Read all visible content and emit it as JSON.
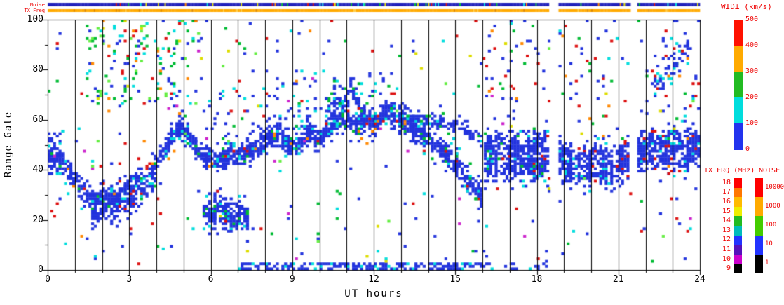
{
  "axes": {
    "x": {
      "title": "UT hours"
    },
    "y": {
      "title": "Range Gate"
    }
  },
  "strips": {
    "noise": {
      "label": "Noise",
      "base": "#2222bb",
      "speck_prob": 0.13,
      "specks": {
        "#00bb33": 0.3,
        "#dd1111": 0.2,
        "#00dddd": 0.2,
        "#ff8800": 0.1,
        "#dddd00": 0.2
      }
    },
    "tx": {
      "label": "TX Freq",
      "base": "#ffaa00",
      "speck_prob": 0.07,
      "specks": {
        "#dd8800": 0.6,
        "#ffcc44": 0.4
      }
    }
  },
  "colorbars": {
    "wid": {
      "title": "WID⊥ (km/s)",
      "ticks": [
        "500",
        "400",
        "300",
        "200",
        "100",
        "0"
      ],
      "colors": [
        "#ff1100",
        "#ffaa00",
        "#22bb22",
        "#00dddd",
        "#2233ee"
      ]
    },
    "txfrq": {
      "title": "TX FRQ (MHz)",
      "ticks": [
        "18",
        "17",
        "16",
        "15",
        "14",
        "13",
        "12",
        "11",
        "10",
        "9"
      ],
      "colors": [
        "#ff0000",
        "#ff7700",
        "#ffbb00",
        "#eeee00",
        "#22bb22",
        "#00bbbb",
        "#2233ff",
        "#5511bb",
        "#cc00cc",
        "#000000"
      ]
    },
    "noise": {
      "title": "NOISE",
      "ticks": [
        "10000",
        "1000",
        "100",
        "10",
        "1"
      ],
      "colors": [
        "#ff0000",
        "#ffaa00",
        "#44cc00",
        "#2233ff",
        "#000000"
      ]
    }
  },
  "chart_data": {
    "type": "heatmap",
    "xlabel": "UT hours",
    "ylabel": "Range Gate",
    "xlim": [
      0,
      24
    ],
    "ylim": [
      0,
      100
    ],
    "x_ticks": [
      0,
      3,
      6,
      9,
      12,
      15,
      18,
      21,
      24
    ],
    "y_ticks": [
      0,
      20,
      40,
      60,
      80,
      100
    ],
    "hour_gridlines": true,
    "value_label": "WID⊥ (km/s)",
    "value_range": [
      0,
      500
    ],
    "seed": 20240613,
    "gaps": [
      [
        18.42,
        18.78
      ],
      [
        21.44,
        21.68
      ]
    ],
    "palette": {
      "blue": "#2233dd",
      "cyan": "#00dddd",
      "green": "#00bb33",
      "lightgreen": "#66ee44",
      "yellow": "#dddd00",
      "orange": "#ff8800",
      "red": "#dd1111",
      "magenta": "#cc22cc"
    },
    "features": [
      {
        "name": "main-echo-band",
        "type": "band",
        "path": [
          [
            0,
            45
          ],
          [
            0.4,
            43
          ],
          [
            0.8,
            38
          ],
          [
            1.2,
            31
          ],
          [
            1.6,
            27
          ],
          [
            2.0,
            29
          ],
          [
            2.4,
            27
          ],
          [
            2.8,
            31
          ],
          [
            3.2,
            34
          ],
          [
            3.6,
            37
          ],
          [
            4.0,
            43
          ],
          [
            4.4,
            50
          ],
          [
            4.8,
            57
          ],
          [
            5.1,
            54
          ],
          [
            5.4,
            48
          ],
          [
            5.8,
            44
          ],
          [
            6.2,
            43
          ],
          [
            6.8,
            45
          ],
          [
            7.4,
            47
          ],
          [
            8.0,
            52
          ],
          [
            8.4,
            54
          ],
          [
            8.8,
            50
          ],
          [
            9.2,
            50
          ],
          [
            9.6,
            54
          ],
          [
            10.0,
            52
          ],
          [
            10.4,
            58
          ],
          [
            10.8,
            61
          ],
          [
            11.2,
            57
          ],
          [
            11.6,
            59
          ],
          [
            12.0,
            58
          ],
          [
            12.4,
            62
          ],
          [
            12.7,
            62
          ],
          [
            13.0,
            59
          ],
          [
            13.4,
            56
          ],
          [
            13.8,
            53
          ],
          [
            14.2,
            50
          ],
          [
            14.6,
            46
          ],
          [
            15.0,
            41
          ],
          [
            15.4,
            35
          ],
          [
            15.8,
            30
          ],
          [
            16.0,
            28
          ]
        ],
        "halfwidth": 4,
        "density": 0.82,
        "colors": {
          "blue": 0.86,
          "cyan": 0.07,
          "green": 0.03,
          "red": 0.02,
          "orange": 0.02
        }
      },
      {
        "name": "upper-branch",
        "type": "band",
        "path": [
          [
            12.9,
            61
          ],
          [
            13.4,
            59
          ],
          [
            13.9,
            60
          ],
          [
            14.4,
            58
          ],
          [
            14.9,
            57
          ],
          [
            15.4,
            55
          ],
          [
            15.9,
            51
          ]
        ],
        "halfwidth": 2,
        "density": 0.62,
        "colors": {
          "blue": 0.85,
          "cyan": 0.1,
          "green": 0.05
        }
      },
      {
        "name": "early-low-band",
        "type": "band",
        "path": [
          [
            1.6,
            21
          ],
          [
            2.0,
            23
          ],
          [
            2.4,
            22
          ],
          [
            2.8,
            25
          ],
          [
            3.2,
            28
          ],
          [
            3.6,
            31
          ],
          [
            4.0,
            36
          ]
        ],
        "halfwidth": 3,
        "density": 0.6,
        "colors": {
          "blue": 0.85,
          "cyan": 0.08,
          "green": 0.04,
          "red": 0.03
        }
      },
      {
        "name": "morning-low-blob",
        "type": "band",
        "path": [
          [
            5.7,
            21
          ],
          [
            6.1,
            23
          ],
          [
            6.5,
            22
          ],
          [
            7.0,
            21
          ],
          [
            7.3,
            20
          ]
        ],
        "halfwidth": 6,
        "density": 0.66,
        "colors": {
          "blue": 0.88,
          "cyan": 0.08,
          "green": 0.04
        }
      },
      {
        "name": "noon-peaks",
        "type": "band",
        "path": [
          [
            10.2,
            62
          ],
          [
            10.5,
            70
          ],
          [
            10.8,
            64
          ],
          [
            11.1,
            72
          ],
          [
            11.4,
            66
          ],
          [
            11.7,
            60
          ]
        ],
        "halfwidth": 3,
        "density": 0.5,
        "colors": {
          "blue": 0.8,
          "cyan": 0.12,
          "green": 0.08
        }
      },
      {
        "name": "evening-block-1",
        "type": "band",
        "streaky": true,
        "path": [
          [
            16.05,
            45
          ],
          [
            18.4,
            45
          ]
        ],
        "halfwidth": 10,
        "density": 0.86,
        "colors": {
          "blue": 0.9,
          "cyan": 0.05,
          "green": 0.02,
          "red": 0.03
        }
      },
      {
        "name": "evening-block-2",
        "type": "band",
        "streaky": true,
        "path": [
          [
            18.8,
            43
          ],
          [
            19.6,
            41
          ],
          [
            20.5,
            42
          ],
          [
            21.4,
            43
          ]
        ],
        "halfwidth": 8,
        "density": 0.85,
        "colors": {
          "blue": 0.92,
          "cyan": 0.04,
          "red": 0.04
        }
      },
      {
        "name": "evening-block-3",
        "type": "band",
        "streaky": true,
        "path": [
          [
            21.7,
            47
          ],
          [
            22.4,
            48
          ],
          [
            23.2,
            47
          ],
          [
            24,
            48
          ]
        ],
        "halfwidth": 8,
        "density": 0.85,
        "colors": {
          "blue": 0.92,
          "cyan": 0.04,
          "red": 0.04
        }
      },
      {
        "name": "top-right-patch",
        "type": "band",
        "path": [
          [
            22.3,
            72
          ],
          [
            22.8,
            78
          ],
          [
            23.2,
            84
          ],
          [
            23.6,
            88
          ]
        ],
        "halfwidth": 5,
        "density": 0.4,
        "colors": {
          "blue": 0.75,
          "cyan": 0.12,
          "green": 0.06,
          "red": 0.07
        }
      },
      {
        "name": "left-edge-block",
        "type": "scatter",
        "t": [
          0,
          0.5
        ],
        "g": [
          38,
          54
        ],
        "density": 0.45,
        "colors": {
          "blue": 0.9,
          "cyan": 0.1
        }
      },
      {
        "name": "ground-level-line",
        "type": "scatter",
        "t": [
          7.0,
          16.1
        ],
        "g": [
          0,
          2
        ],
        "density": 0.5,
        "colors": {
          "blue": 0.85,
          "cyan": 0.15
        }
      },
      {
        "name": "ground-level-line-2",
        "type": "scatter",
        "t": [
          16.1,
          18.4
        ],
        "g": [
          0,
          2
        ],
        "density": 0.15,
        "colors": {
          "blue": 0.9,
          "cyan": 0.1
        }
      },
      {
        "name": "dawn-high-cluster",
        "type": "scatter",
        "t": [
          1.4,
          5.6
        ],
        "g": [
          66,
          100
        ],
        "density": 0.1,
        "colors": {
          "green": 0.28,
          "lightgreen": 0.12,
          "cyan": 0.22,
          "blue": 0.2,
          "red": 0.08,
          "orange": 0.05,
          "yellow": 0.05
        }
      },
      {
        "name": "midday-high-scatter",
        "type": "scatter",
        "t": [
          8.3,
          12.6
        ],
        "g": [
          55,
          78
        ],
        "density": 0.09,
        "colors": {
          "blue": 0.6,
          "cyan": 0.2,
          "green": 0.1,
          "red": 0.06,
          "orange": 0.04
        }
      },
      {
        "name": "morning-mid-scatter",
        "type": "scatter",
        "t": [
          5.8,
          8.3
        ],
        "g": [
          52,
          72
        ],
        "density": 0.05,
        "colors": {
          "blue": 0.7,
          "cyan": 0.15,
          "green": 0.1,
          "red": 0.05
        }
      },
      {
        "name": "evening-high-scatter",
        "type": "scatter",
        "t": [
          16,
          24
        ],
        "g": [
          58,
          100
        ],
        "density": 0.03,
        "colors": {
          "blue": 0.55,
          "cyan": 0.1,
          "green": 0.1,
          "red": 0.18,
          "orange": 0.07
        }
      },
      {
        "name": "background-speckle",
        "type": "scatter",
        "t": [
          0,
          24
        ],
        "g": [
          2,
          100
        ],
        "density": 0.016,
        "colors": {
          "blue": 0.4,
          "cyan": 0.1,
          "green": 0.12,
          "lightgreen": 0.04,
          "red": 0.18,
          "orange": 0.08,
          "magenta": 0.04,
          "yellow": 0.04
        }
      }
    ]
  }
}
